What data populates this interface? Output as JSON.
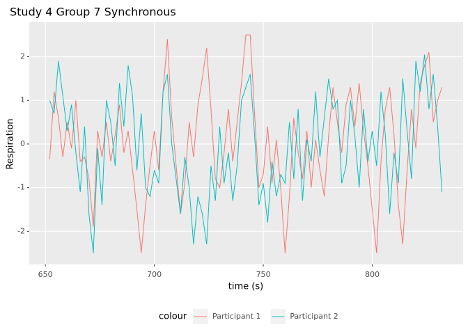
{
  "chart_data": {
    "type": "line",
    "title": "Study 4 Group 7 Synchronous",
    "x_label": "time (s)",
    "y_label": "Respiration",
    "legend_title": "colour",
    "legend_position": "bottom",
    "grid": true,
    "x": [
      652,
      654,
      656,
      658,
      660,
      662,
      664,
      666,
      668,
      670,
      672,
      674,
      676,
      678,
      680,
      682,
      684,
      686,
      688,
      690,
      692,
      694,
      696,
      698,
      700,
      702,
      704,
      706,
      708,
      710,
      712,
      714,
      716,
      718,
      720,
      722,
      724,
      726,
      728,
      730,
      732,
      734,
      736,
      738,
      740,
      742,
      744,
      746,
      748,
      750,
      752,
      754,
      756,
      758,
      760,
      762,
      764,
      766,
      768,
      770,
      772,
      774,
      776,
      778,
      780,
      782,
      784,
      786,
      788,
      790,
      792,
      794,
      796,
      798,
      800,
      802,
      804,
      806,
      808,
      810,
      812,
      814,
      816,
      818,
      820,
      822,
      824,
      826,
      828,
      830,
      832
    ],
    "series": [
      {
        "name": "Participant 1",
        "color": "#F8766D",
        "values": [
          -0.35,
          1.2,
          0.6,
          -0.3,
          0.5,
          -0.1,
          1.0,
          -0.4,
          -0.3,
          -0.8,
          -1.9,
          0.3,
          -0.3,
          0.5,
          -0.4,
          0.2,
          0.9,
          -0.2,
          0.3,
          -0.6,
          -1.5,
          -2.5,
          -1.4,
          -0.5,
          0.3,
          -0.6,
          1.2,
          2.4,
          0.6,
          -0.5,
          -1.6,
          -0.9,
          0.5,
          -0.3,
          0.9,
          1.5,
          2.2,
          0.8,
          -0.8,
          -1.0,
          -0.2,
          0.8,
          -0.4,
          0.5,
          1.4,
          2.5,
          2.5,
          0.7,
          -1.0,
          -0.7,
          0.4,
          -0.9,
          0.1,
          -1.0,
          -2.5,
          -1.2,
          0.6,
          -0.2,
          -0.8,
          0.3,
          -1.0,
          0.1,
          -0.6,
          -1.2,
          0.2,
          1.3,
          0.5,
          -0.2,
          0.9,
          1.3,
          0.4,
          1.4,
          0.3,
          -0.5,
          -1.5,
          -2.5,
          -0.4,
          0.8,
          1.3,
          0.2,
          -1.4,
          -2.3,
          -0.6,
          0.8,
          -0.1,
          1.4,
          1.8,
          2.1,
          0.5,
          1.0,
          1.3
        ]
      },
      {
        "name": "Participant 2",
        "color": "#00BFC4",
        "values": [
          1.0,
          0.7,
          1.9,
          1.1,
          0.3,
          0.9,
          -0.2,
          -1.1,
          0.4,
          -1.6,
          -2.5,
          -0.1,
          -1.4,
          1.0,
          0.5,
          -0.5,
          1.4,
          0.4,
          1.8,
          1.1,
          -0.6,
          0.7,
          -1.0,
          -1.2,
          -0.6,
          -0.9,
          1.2,
          1.6,
          0.0,
          -0.8,
          -1.6,
          -0.3,
          -1.0,
          -2.3,
          -1.2,
          -1.6,
          -2.3,
          -0.5,
          -1.3,
          0.4,
          -0.9,
          -0.2,
          -1.3,
          -0.5,
          1.0,
          1.3,
          1.6,
          0.2,
          -1.4,
          -0.9,
          -1.8,
          -0.4,
          -1.2,
          -0.7,
          -0.9,
          0.5,
          -0.8,
          0.8,
          -1.3,
          0.1,
          -0.4,
          1.2,
          -0.3,
          0.6,
          1.5,
          0.8,
          1.0,
          -0.9,
          -0.5,
          1.0,
          0.2,
          -1.0,
          0.8,
          -0.4,
          0.3,
          -0.5,
          1.2,
          0.2,
          -1.6,
          -0.2,
          -0.9,
          1.5,
          0.3,
          -0.8,
          1.9,
          1.2,
          2.05,
          0.8,
          1.6,
          0.4,
          -1.1
        ]
      }
    ],
    "xlim": [
      642.6,
      841.7
    ],
    "xticks": [
      650,
      700,
      750,
      800
    ],
    "ylim": [
      -2.76,
      2.79
    ],
    "yticks": [
      -2,
      -1,
      0,
      1,
      2
    ]
  }
}
